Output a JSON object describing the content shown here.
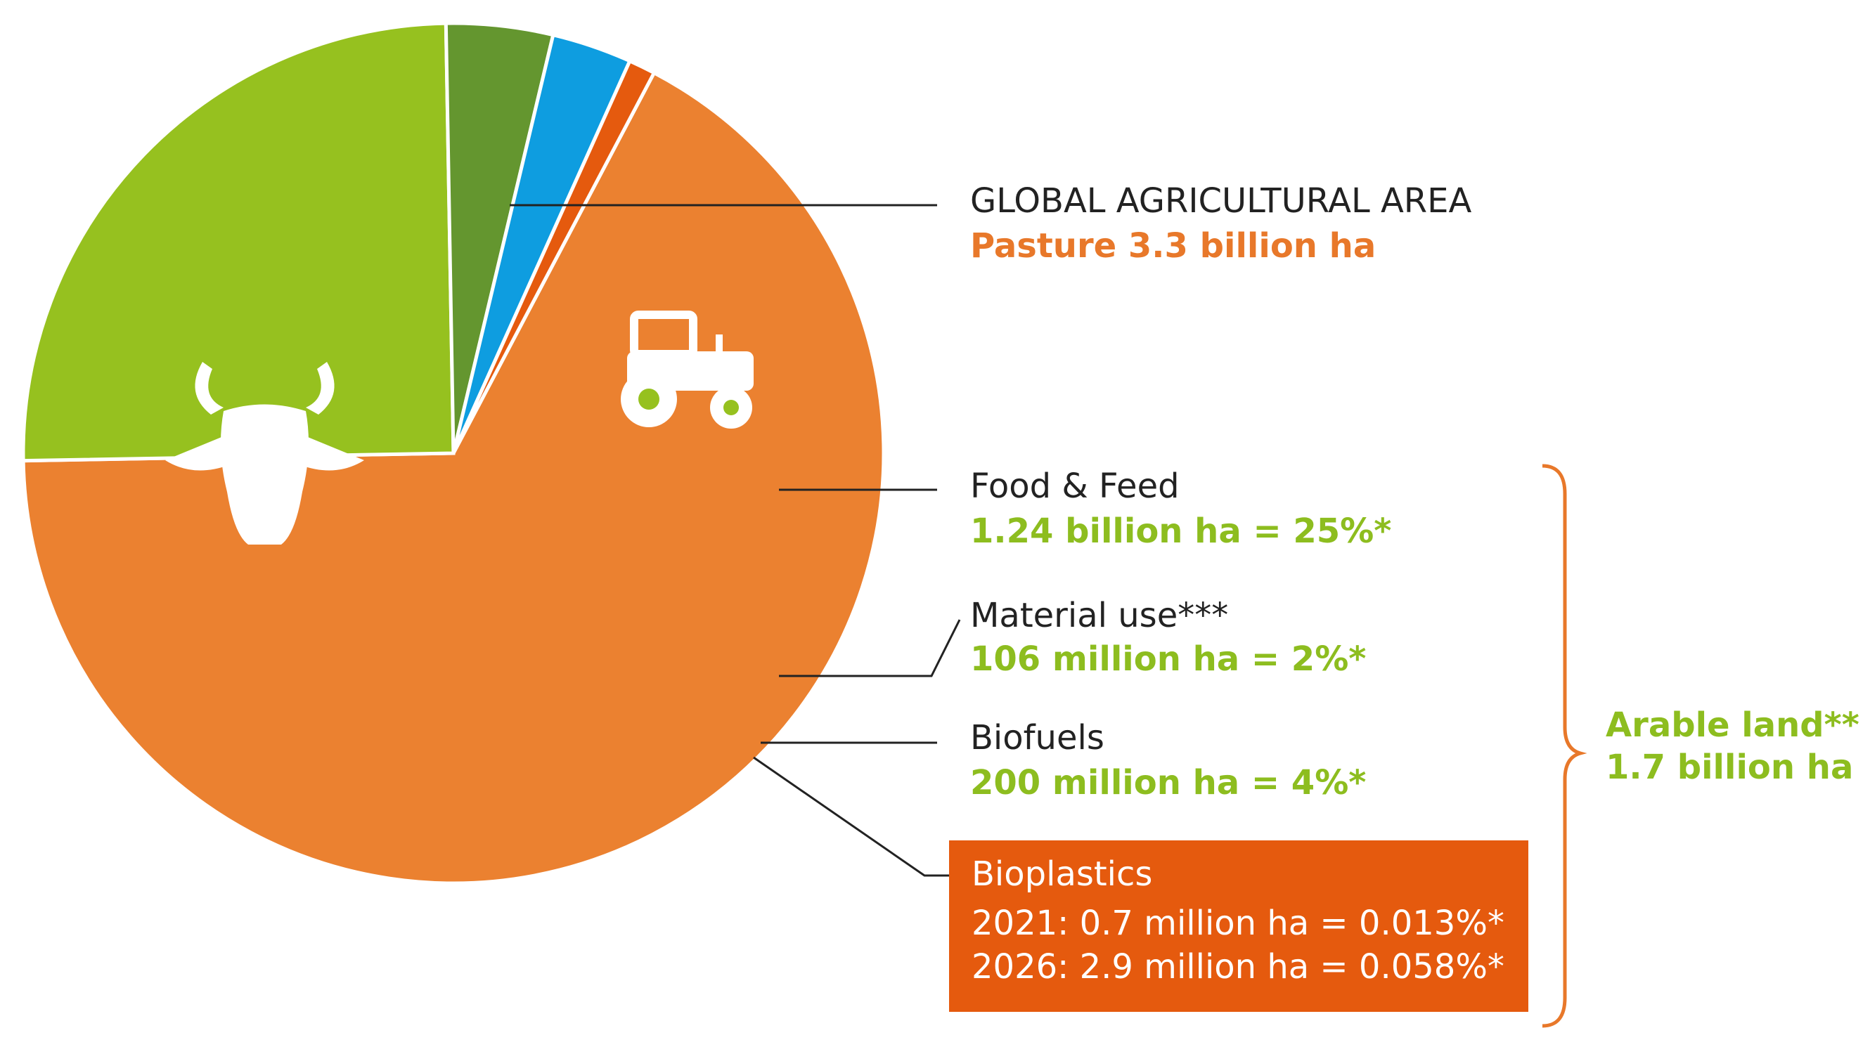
{
  "chart_data": {
    "type": "pie",
    "title": "",
    "slices": [
      {
        "name": "Pasture",
        "value": 3.3,
        "unit": "billion ha",
        "color": "#eb8130"
      },
      {
        "name": "Food & Feed",
        "value": 1.24,
        "unit": "billion ha",
        "color": "#96c11f"
      },
      {
        "name": "Material use",
        "value": 0.106,
        "unit": "billion ha",
        "color": "#64962f"
      },
      {
        "name": "Biofuels",
        "value": 0.2,
        "unit": "billion ha",
        "color": "#0e9de0"
      },
      {
        "name": "Bioplastics",
        "value": 0.0007,
        "unit": "billion ha",
        "color": "#e55a0e"
      }
    ]
  },
  "labels": {
    "global_title": "GLOBAL AGRICULTURAL AREA",
    "pasture": "Pasture 3.3 billion ha",
    "food_title": "Food & Feed",
    "food_value": "1.24 billion ha = 25%*",
    "material_title": "Material use***",
    "material_value": "106 million ha  = 2%*",
    "biofuels_title": "Biofuels",
    "biofuels_value": "200 million ha = 4%*",
    "bioplastics_title": "Bioplastics",
    "bioplastics_2021": "2021: 0.7 million ha = 0.013%*",
    "bioplastics_2026": "2026: 2.9 million ha = 0.058%*",
    "arable_title": "Arable land**",
    "arable_value": "1.7 billion ha"
  },
  "icons": {
    "pasture": "cow-head-icon",
    "cropland": "tractor-icon"
  },
  "colors": {
    "bracket": "#e8782a",
    "leader": "#222222"
  }
}
